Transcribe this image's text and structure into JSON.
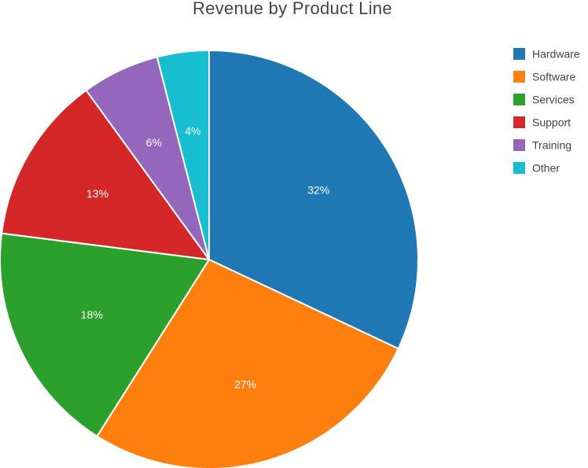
{
  "chart_data": {
    "type": "pie",
    "title": "Revenue by Product Line",
    "legend_position": "top-right",
    "slices": [
      {
        "label": "Hardware",
        "value": 32,
        "display": "32%",
        "color": "#1f77b4"
      },
      {
        "label": "Software",
        "value": 27,
        "display": "27%",
        "color": "#ff7f0e"
      },
      {
        "label": "Services",
        "value": 18,
        "display": "18%",
        "color": "#2ca02c"
      },
      {
        "label": "Support",
        "value": 13,
        "display": "13%",
        "color": "#d62728"
      },
      {
        "label": "Training",
        "value": 6,
        "display": "6%",
        "color": "#9467bd"
      },
      {
        "label": "Other",
        "value": 4,
        "display": "4%",
        "color": "#17becf"
      }
    ]
  }
}
